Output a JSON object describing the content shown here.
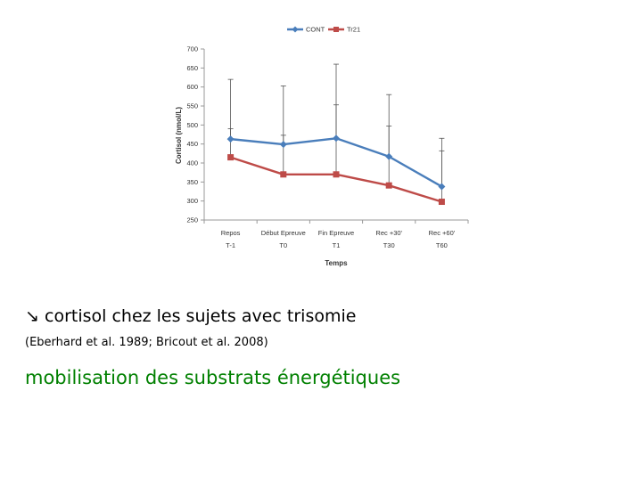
{
  "slide": {
    "line1_arrow": "↘",
    "line1_text": "cortisol chez les sujets avec trisomie",
    "line2_text": "(Eberhard et al. 1989; Bricout et al. 2008)",
    "line3_text": "mobilisation des substrats énergétiques",
    "line3_color": "#008000"
  },
  "chart_data": {
    "type": "line",
    "title": "",
    "xlabel": "Temps",
    "ylabel": "Cortisol (nmol/L)",
    "categories": [
      [
        "Repos",
        "T-1"
      ],
      [
        "Début Epreuve",
        "T0"
      ],
      [
        "Fin Epreuve",
        "T1"
      ],
      [
        "Rec +30'",
        "T30"
      ],
      [
        "Rec +60'",
        "T60"
      ]
    ],
    "ylim": [
      250,
      700
    ],
    "yticks": [
      250,
      300,
      350,
      400,
      450,
      500,
      550,
      600,
      650,
      700
    ],
    "grid": false,
    "legend_position": "top-center",
    "series": [
      {
        "name": "CONT",
        "color": "#4a7ebb",
        "marker": "diamond",
        "values": [
          463,
          449,
          465,
          417,
          338
        ],
        "error_upper": [
          620,
          603,
          660,
          580,
          465
        ]
      },
      {
        "name": "Tr21",
        "color": "#be4b48",
        "marker": "square",
        "values": [
          415,
          370,
          370,
          341,
          298
        ],
        "error_upper": [
          490,
          473,
          553,
          497,
          432
        ]
      }
    ]
  }
}
